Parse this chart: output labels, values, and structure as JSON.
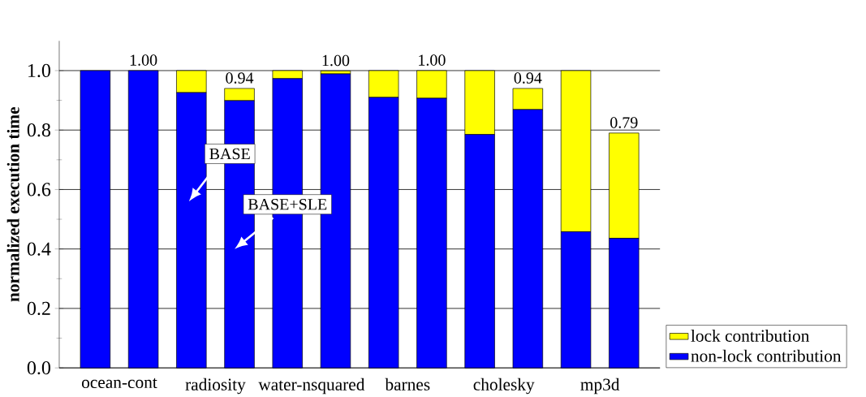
{
  "chart_data": {
    "type": "bar",
    "stacked": true,
    "ylabel": "normalized execution time",
    "categories": [
      "ocean-cont",
      null,
      "radiosity",
      null,
      "water-nsquared",
      null,
      "barnes",
      null,
      "cholesky",
      null,
      "mp3d",
      null
    ],
    "series": [
      {
        "name": "non-lock contribution",
        "color": "#0000ff",
        "values": [
          1.0,
          1.0,
          0.926,
          0.899,
          0.973,
          0.989,
          0.91,
          0.907,
          0.785,
          0.869,
          0.458,
          0.436
        ]
      },
      {
        "name": "lock contribution",
        "color": "#ffff00",
        "values": [
          0,
          0,
          0.074,
          0.041,
          0.027,
          0.01,
          0.09,
          0.093,
          0.215,
          0.071,
          0.542,
          0.354
        ]
      }
    ],
    "totals": [
      null,
      "1.00",
      null,
      "0.94",
      null,
      "1.00",
      null,
      "1.00",
      null,
      "0.94",
      null,
      "0.79"
    ],
    "annotations": [
      "BASE",
      "BASE+SLE"
    ],
    "ylim": [
      0,
      1.1
    ],
    "yticks": [
      {
        "value": 0,
        "label": "0.0"
      },
      {
        "value": 0.2,
        "label": "0.2"
      },
      {
        "value": 0.4,
        "label": "0.4"
      },
      {
        "value": 0.6,
        "label": "0.6"
      },
      {
        "value": 0.8,
        "label": "0.8"
      },
      {
        "value": 1.0,
        "label": "1.0"
      }
    ],
    "grid": "y",
    "legend": "bottom right"
  }
}
